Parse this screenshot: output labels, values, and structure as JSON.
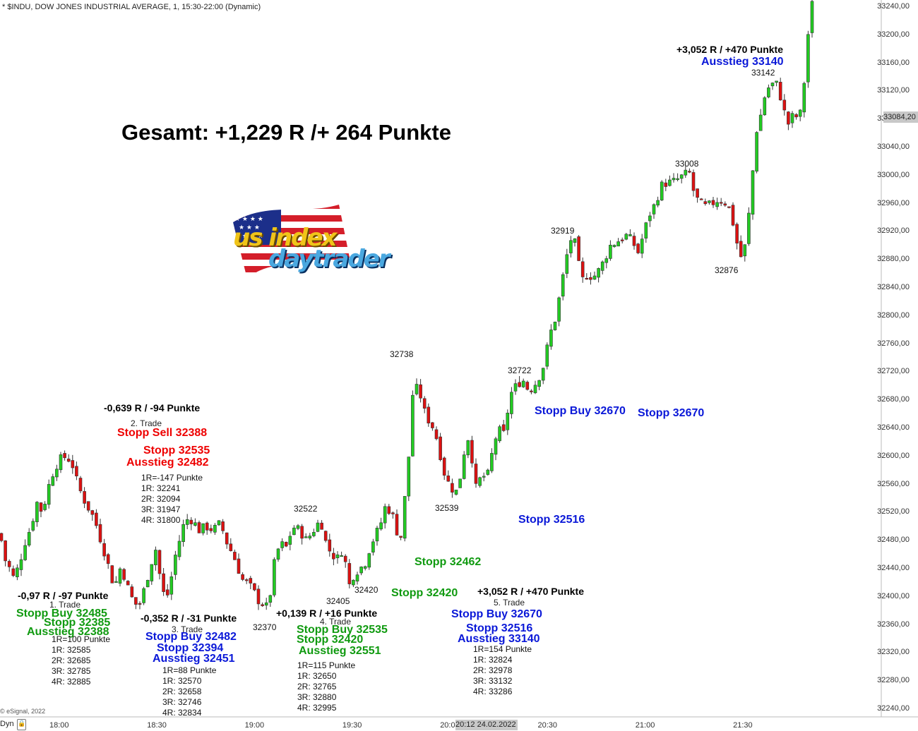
{
  "header": {
    "title": "* $INDU, DOW JONES INDUSTRIAL AVERAGE, 1, 15:30-22:00 (Dynamic)",
    "headline": "Gesamt: +1,229 R /+ 264 Punkte",
    "footer_credit": "© eSignal, 2022",
    "footer_left": "Dyn",
    "price_badge": "33084,20",
    "date_badge": "20:12 24.02.2022"
  },
  "logo": {
    "line1": "us index",
    "line2": "daytrader"
  },
  "colors": {
    "up": "#22cc22",
    "down": "#dd1111",
    "green_text": "#109a10",
    "blue_text": "#0a18d8",
    "red_text": "#ee0000"
  },
  "trade1": {
    "result": "-0,97 R / -97 Punkte",
    "label": "1. Trade",
    "line1": "Stopp Buy 32485",
    "line2": "Stopp 32385",
    "line3": "Ausstieg 32388",
    "r": [
      "1R=100 Punkte",
      "1R: 32585",
      "2R: 32685",
      "3R: 32785",
      "4R: 32885"
    ]
  },
  "trade2": {
    "result": "-0,639 R / -94 Punkte",
    "label": "2. Trade",
    "line1": "Stopp Sell 32388",
    "line2": "Stopp 32535",
    "line3": "Ausstieg 32482",
    "r": [
      "1R=-147 Punkte",
      "1R: 32241",
      "2R: 32094",
      "3R: 31947",
      "4R: 31800"
    ]
  },
  "trade3": {
    "result": "-0,352 R / -31 Punkte",
    "label": "3. Trade",
    "line1": "Stopp Buy 32482",
    "line2": "Stopp 32394",
    "line3": "Ausstieg 32451",
    "r": [
      "1R=88 Punkte",
      "1R: 32570",
      "2R: 32658",
      "3R: 32746",
      "4R: 32834"
    ]
  },
  "trade4": {
    "result": "+0,139 R / +16 Punkte",
    "label": "4. Trade",
    "line1": "Stopp Buy 32535",
    "line2": "Stopp 32420",
    "line3": "Ausstieg 32551",
    "r": [
      "1R=115 Punkte",
      "1R: 32650",
      "2R: 32765",
      "3R: 32880",
      "4R: 32995"
    ]
  },
  "trade5": {
    "result": "+3,052 R / +470 Punkte",
    "label": "5. Trade",
    "line1": "Stopp Buy 32670",
    "line2": "Stopp 32516",
    "line3": "Ausstieg 33140",
    "r": [
      "1R=154 Punkte",
      "1R: 32824",
      "2R: 32978",
      "3R: 33132",
      "4R: 33286"
    ]
  },
  "trade5_top": {
    "result": "+3,052 R / +470 Punkte",
    "exit": "Ausstieg 33140"
  },
  "stops_on_chart": {
    "s32462": "Stopp 32462",
    "s32420": "Stopp 32420",
    "s32516": "Stopp 32516",
    "buy32670": "Stopp Buy 32670",
    "s32670": "Stopp 32670"
  },
  "chart_data": {
    "type": "candlestick",
    "title": "* $INDU, DOW JONES INDUSTRIAL AVERAGE, 1, 15:30-22:00 (Dynamic)",
    "ylim": [
      32230,
      33255
    ],
    "y_ticks": [
      "33240,00",
      "33200,00",
      "33160,00",
      "33120,00",
      "33080,00",
      "33040,00",
      "33000,00",
      "32960,00",
      "32920,00",
      "32880,00",
      "32840,00",
      "32800,00",
      "32760,00",
      "32720,00",
      "32680,00",
      "32640,00",
      "32600,00",
      "32560,00",
      "32520,00",
      "32480,00",
      "32440,00",
      "32400,00",
      "32360,00",
      "32320,00",
      "32280,00",
      "32240,00"
    ],
    "x_ticks": [
      "18:00",
      "18:30",
      "19:00",
      "19:30",
      "20:00",
      "20:30",
      "21:00",
      "21:30"
    ],
    "extremes": [
      "32738",
      "32722",
      "32919",
      "33008",
      "33142",
      "32876",
      "32539",
      "32522",
      "32405",
      "32420",
      "32370"
    ],
    "path": [
      [
        0,
        32490
      ],
      [
        8,
        32450
      ],
      [
        14,
        32440
      ],
      [
        20,
        32425
      ],
      [
        28,
        32450
      ],
      [
        36,
        32480
      ],
      [
        44,
        32500
      ],
      [
        52,
        32535
      ],
      [
        60,
        32520
      ],
      [
        68,
        32555
      ],
      [
        76,
        32580
      ],
      [
        84,
        32595
      ],
      [
        94,
        32600
      ],
      [
        102,
        32590
      ],
      [
        110,
        32560
      ],
      [
        118,
        32540
      ],
      [
        126,
        32525
      ],
      [
        134,
        32510
      ],
      [
        140,
        32490
      ],
      [
        146,
        32470
      ],
      [
        152,
        32450
      ],
      [
        158,
        32425
      ],
      [
        164,
        32420
      ],
      [
        170,
        32440
      ],
      [
        176,
        32430
      ],
      [
        182,
        32410
      ],
      [
        188,
        32395
      ],
      [
        196,
        32385
      ],
      [
        204,
        32410
      ],
      [
        212,
        32440
      ],
      [
        220,
        32470
      ],
      [
        228,
        32420
      ],
      [
        234,
        32395
      ],
      [
        240,
        32410
      ],
      [
        246,
        32450
      ],
      [
        254,
        32480
      ],
      [
        262,
        32510
      ],
      [
        272,
        32510
      ],
      [
        282,
        32495
      ],
      [
        292,
        32500
      ],
      [
        302,
        32495
      ],
      [
        312,
        32505
      ],
      [
        322,
        32475
      ],
      [
        330,
        32460
      ],
      [
        336,
        32445
      ],
      [
        342,
        32425
      ],
      [
        350,
        32420
      ],
      [
        358,
        32410
      ],
      [
        366,
        32395
      ],
      [
        372,
        32390
      ],
      [
        378,
        32385
      ],
      [
        384,
        32410
      ],
      [
        390,
        32460
      ],
      [
        398,
        32475
      ],
      [
        406,
        32470
      ],
      [
        414,
        32500
      ],
      [
        424,
        32495
      ],
      [
        434,
        32480
      ],
      [
        444,
        32495
      ],
      [
        454,
        32510
      ],
      [
        462,
        32475
      ],
      [
        470,
        32460
      ],
      [
        478,
        32455
      ],
      [
        486,
        32470
      ],
      [
        494,
        32415
      ],
      [
        500,
        32430
      ],
      [
        508,
        32440
      ],
      [
        516,
        32445
      ],
      [
        522,
        32465
      ],
      [
        530,
        32485
      ],
      [
        538,
        32500
      ],
      [
        546,
        32530
      ],
      [
        554,
        32520
      ],
      [
        560,
        32505
      ],
      [
        566,
        32470
      ],
      [
        572,
        32530
      ],
      [
        578,
        32580
      ],
      [
        582,
        32680
      ],
      [
        588,
        32700
      ],
      [
        596,
        32685
      ],
      [
        602,
        32660
      ],
      [
        608,
        32650
      ],
      [
        614,
        32640
      ],
      [
        620,
        32620
      ],
      [
        626,
        32590
      ],
      [
        632,
        32565
      ],
      [
        638,
        32560
      ],
      [
        644,
        32545
      ],
      [
        650,
        32560
      ],
      [
        656,
        32600
      ],
      [
        662,
        32630
      ],
      [
        668,
        32600
      ],
      [
        676,
        32540
      ],
      [
        682,
        32585
      ],
      [
        688,
        32560
      ],
      [
        694,
        32590
      ],
      [
        700,
        32620
      ],
      [
        706,
        32640
      ],
      [
        712,
        32625
      ],
      [
        718,
        32660
      ],
      [
        724,
        32690
      ],
      [
        732,
        32702
      ],
      [
        740,
        32710
      ],
      [
        748,
        32695
      ],
      [
        756,
        32700
      ],
      [
        764,
        32715
      ],
      [
        770,
        32730
      ],
      [
        776,
        32760
      ],
      [
        782,
        32785
      ],
      [
        788,
        32800
      ],
      [
        794,
        32840
      ],
      [
        800,
        32870
      ],
      [
        806,
        32905
      ],
      [
        812,
        32915
      ],
      [
        818,
        32880
      ],
      [
        824,
        32850
      ],
      [
        832,
        32860
      ],
      [
        840,
        32855
      ],
      [
        848,
        32865
      ],
      [
        856,
        32880
      ],
      [
        864,
        32900
      ],
      [
        872,
        32905
      ],
      [
        880,
        32910
      ],
      [
        888,
        32915
      ],
      [
        896,
        32905
      ],
      [
        904,
        32890
      ],
      [
        912,
        32920
      ],
      [
        920,
        32945
      ],
      [
        928,
        32960
      ],
      [
        936,
        32985
      ],
      [
        944,
        32990
      ],
      [
        952,
        32990
      ],
      [
        960,
        32995
      ],
      [
        968,
        33000
      ],
      [
        976,
        33005
      ],
      [
        984,
        32970
      ],
      [
        992,
        32960
      ],
      [
        1000,
        32955
      ],
      [
        1008,
        32960
      ],
      [
        1016,
        32965
      ],
      [
        1024,
        32965
      ],
      [
        1032,
        32955
      ],
      [
        1040,
        32925
      ],
      [
        1046,
        32890
      ],
      [
        1052,
        32880
      ],
      [
        1058,
        32920
      ],
      [
        1064,
        32980
      ],
      [
        1070,
        33060
      ],
      [
        1076,
        33080
      ],
      [
        1082,
        33110
      ],
      [
        1088,
        33125
      ],
      [
        1094,
        33130
      ],
      [
        1100,
        33130
      ],
      [
        1106,
        33110
      ],
      [
        1112,
        33085
      ],
      [
        1118,
        33070
      ],
      [
        1124,
        33090
      ],
      [
        1130,
        33080
      ],
      [
        1136,
        33095
      ],
      [
        1140,
        33150
      ],
      [
        1146,
        33220
      ],
      [
        1152,
        33255
      ]
    ]
  }
}
